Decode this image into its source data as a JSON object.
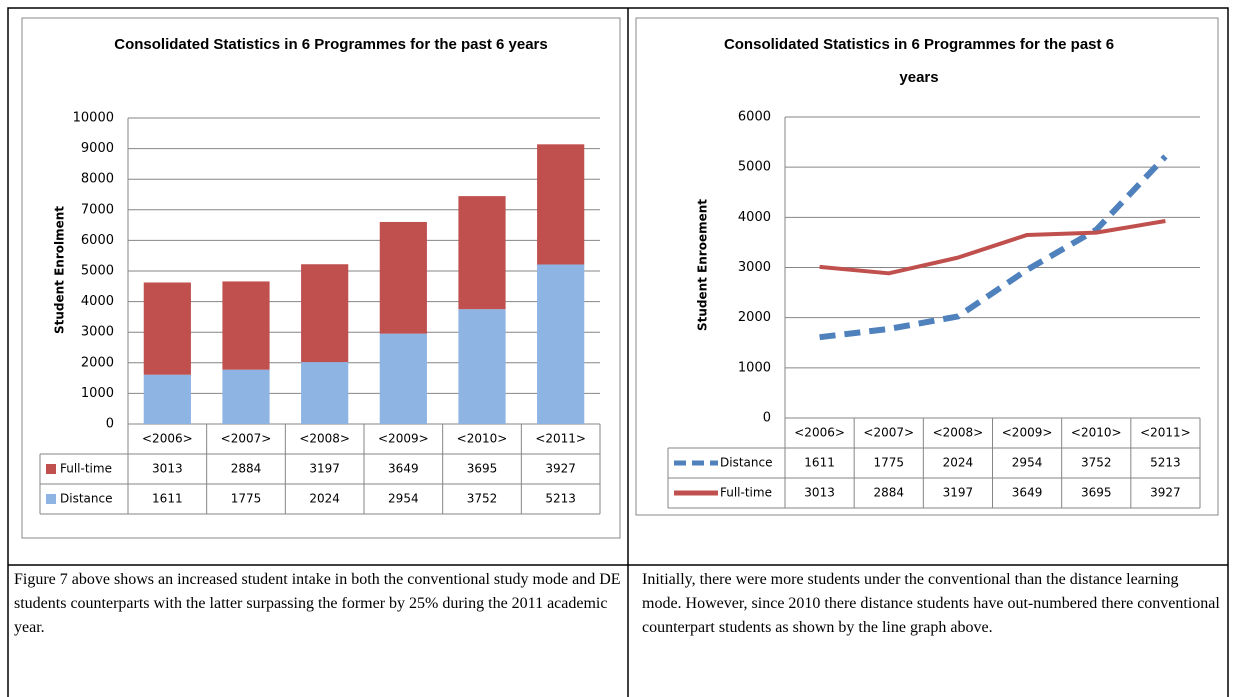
{
  "chart_data": [
    {
      "type": "bar",
      "stacked": true,
      "title": "Consolidated Statistics in 6 Programmes for the past 6 years",
      "y_label": "Student Enrolment",
      "categories": [
        "<2006>",
        "<2007>",
        "<2008>",
        "<2009>",
        "<2010>",
        "<2011>"
      ],
      "series": [
        {
          "name": "Full-time",
          "color": "#c0504d",
          "values": [
            3013,
            2884,
            3197,
            3649,
            3695,
            3927
          ]
        },
        {
          "name": "Distance",
          "color": "#8eb4e3",
          "values": [
            1611,
            1775,
            2024,
            2954,
            3752,
            5213
          ]
        }
      ],
      "ylim": [
        0,
        10000
      ],
      "yticks": [
        0,
        1000,
        2000,
        3000,
        4000,
        5000,
        6000,
        7000,
        8000,
        9000,
        10000
      ],
      "grid": true
    },
    {
      "type": "line",
      "title": "Consolidated Statistics in 6 Programmes for the past 6 years",
      "y_label": "Student Enroement",
      "categories": [
        "<2006>",
        "<2007>",
        "<2008>",
        "<2009>",
        "<2010>",
        "<2011>"
      ],
      "series": [
        {
          "name": "Distance",
          "color": "#4f81bd",
          "style": "dashed",
          "values": [
            1611,
            1775,
            2024,
            2954,
            3752,
            5213
          ]
        },
        {
          "name": "Full-time",
          "color": "#c0504d",
          "style": "solid",
          "values": [
            3013,
            2884,
            3197,
            3649,
            3695,
            3927
          ]
        }
      ],
      "ylim": [
        0,
        6000
      ],
      "yticks": [
        0,
        1000,
        2000,
        3000,
        4000,
        5000,
        6000
      ],
      "grid": true
    }
  ],
  "captions": [
    "Figure 7 above shows an increased student intake in both the conventional study mode and DE students counterparts with the latter surpassing the former by 25% during the 2011 academic year.",
    "Initially, there were more students under the conventional than the distance learning mode. However, since 2010 there distance students have out-numbered there conventional counterpart students as shown by the line graph above."
  ]
}
